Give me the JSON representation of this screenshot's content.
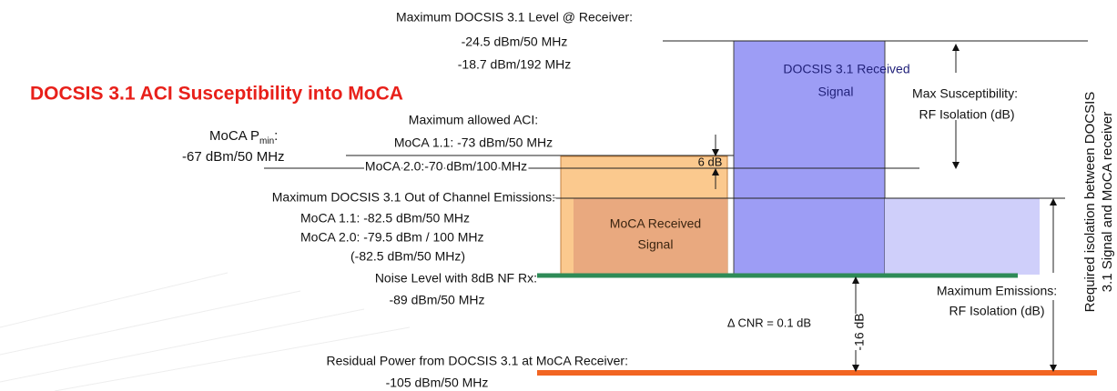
{
  "title": "DOCSIS 3.1 ACI Susceptibility into MoCA",
  "max_level": {
    "label": "Maximum DOCSIS 3.1 Level @ Receiver:",
    "line1": "-24.5 dBm/50 MHz",
    "line2": "-18.7 dBm/192 MHz"
  },
  "max_aci": {
    "label": "Maximum allowed ACI:",
    "line1": "MoCA 1.1: -73 dBm/50 MHz",
    "line2": "MoCA 2.0:-70 dBm/100 MHz"
  },
  "moca_pmin": {
    "label": "MoCA P",
    "sub": "min",
    "suffix": ":",
    "value": "-67 dBm/50 MHz"
  },
  "margin": "6 dB",
  "docsis_signal": {
    "line1": "DOCSIS 3.1 Received",
    "line2": "Signal"
  },
  "max_susceptibility": {
    "line1": "Max Susceptibility:",
    "line2": "RF Isolation (dB)"
  },
  "out_of_channel": {
    "label": "Maximum DOCSIS 3.1 Out of Channel Emissions:",
    "line1": "MoCA 1.1: -82.5 dBm/50 MHz",
    "line2": "MoCA 2.0: -79.5 dBm / 100 MHz",
    "line3": "(-82.5 dBm/50 MHz)"
  },
  "moca_signal": {
    "line1": "MoCA Received",
    "line2": "Signal"
  },
  "noise": {
    "label": "Noise Level with 8dB NF Rx:",
    "value": "-89 dBm/50 MHz"
  },
  "max_emissions": {
    "line1": "Maximum Emissions:",
    "line2": "RF Isolation (dB)"
  },
  "delta": "-16 dB",
  "cnr": "Δ CNR = 0.1 dB",
  "residual": {
    "label": "Residual Power from DOCSIS 3.1 at MoCA Receiver:",
    "value": "-105 dBm/50 MHz"
  },
  "required": {
    "line1": "Required isolation between DOCSIS",
    "line2": "3.1 Signal and MoCA receiver"
  }
}
